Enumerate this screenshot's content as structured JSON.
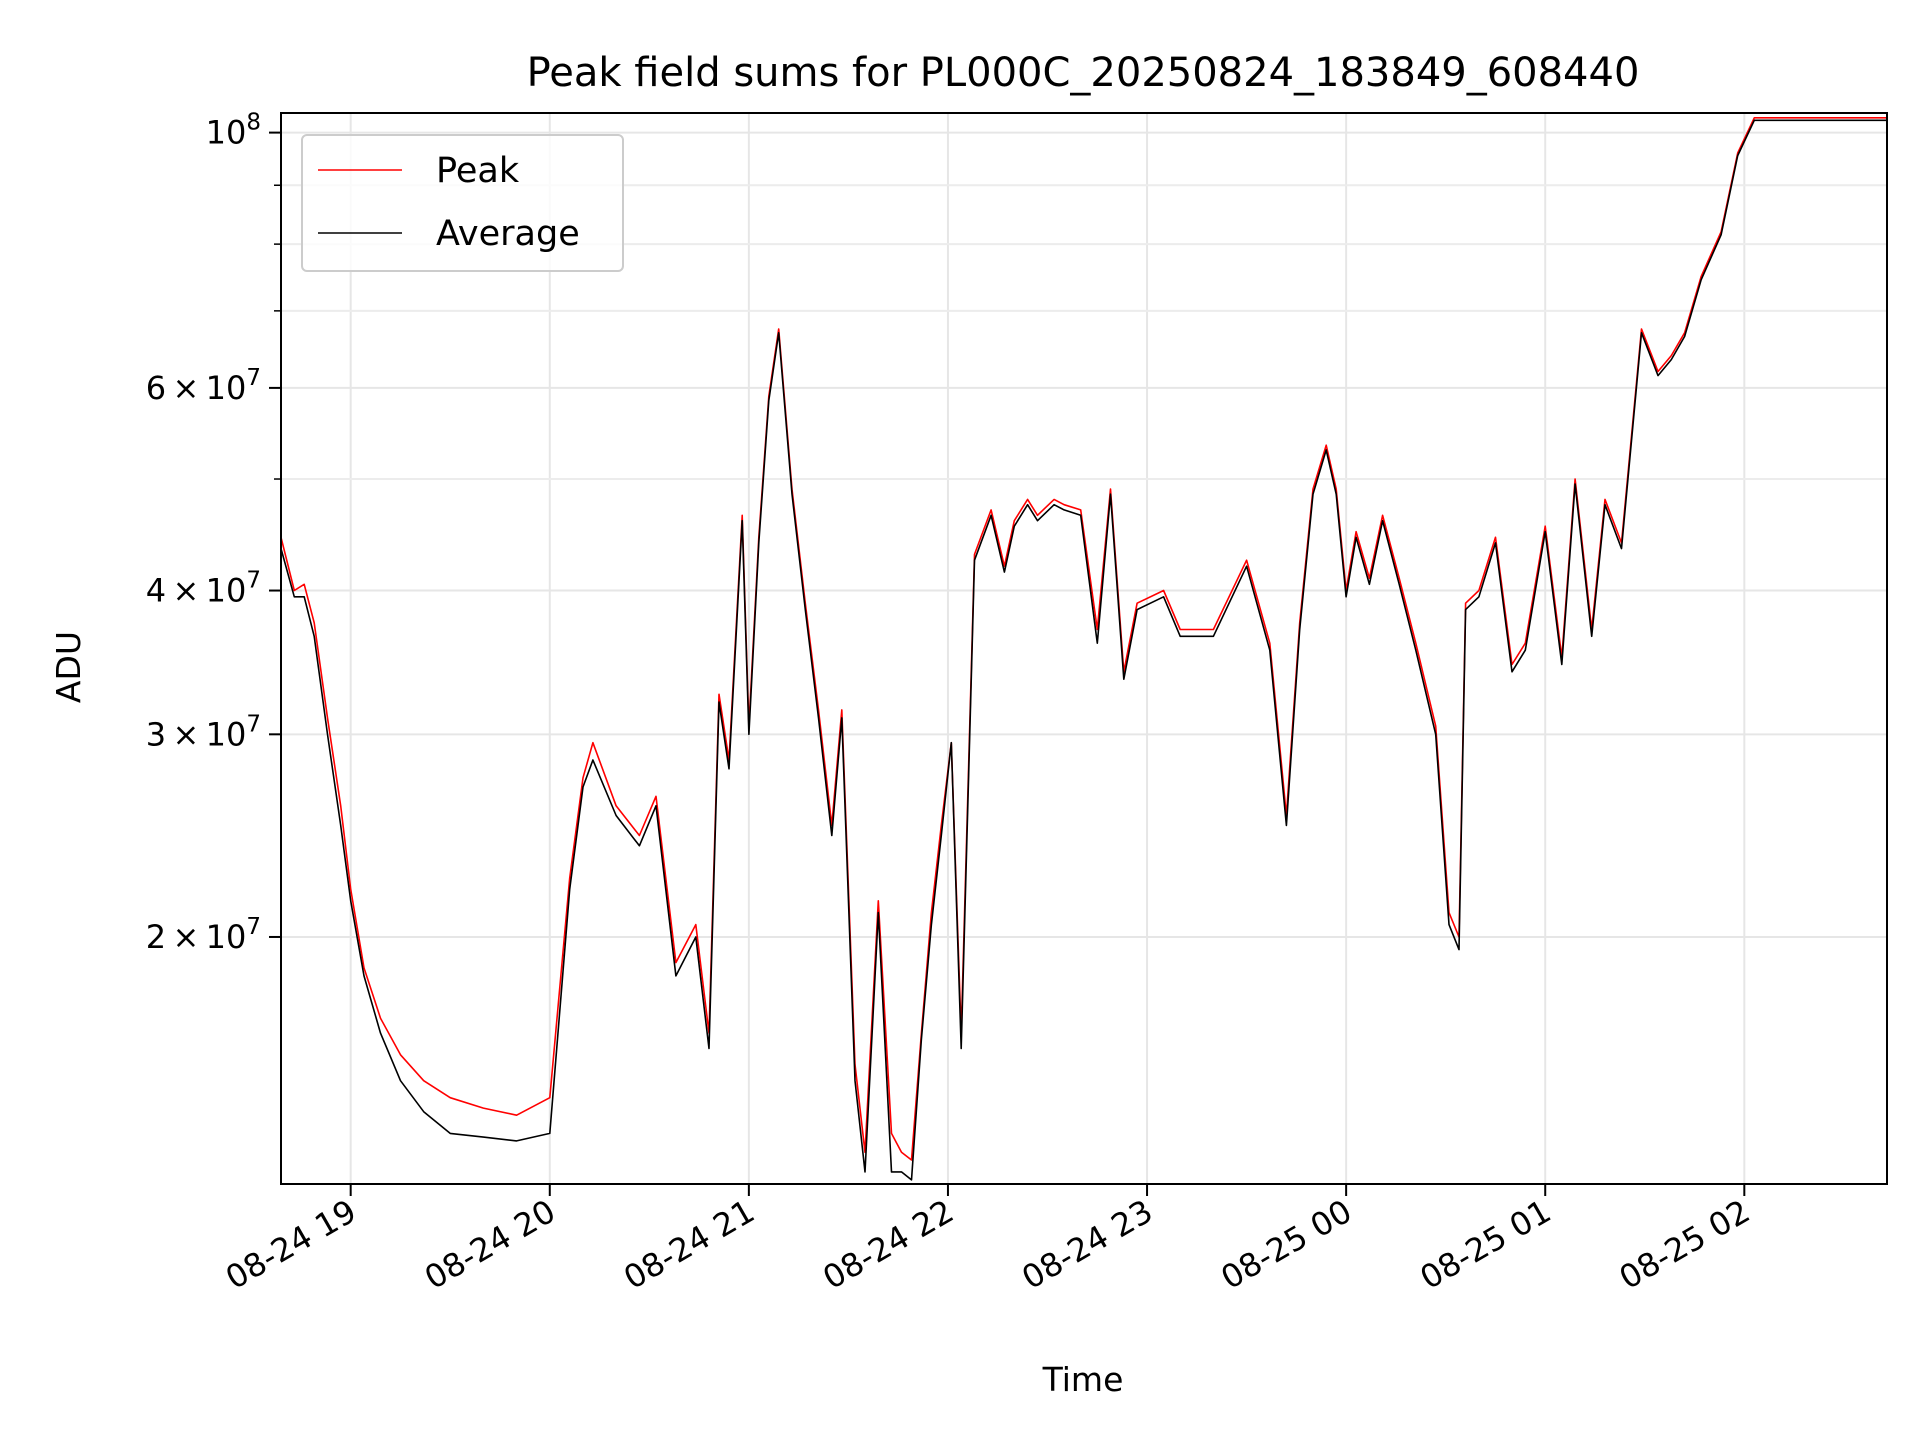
{
  "chart_data": {
    "type": "line",
    "title": "Peak field sums for PL000C_20250824_183849_608440",
    "xlabel": "Time",
    "ylabel": "ADU",
    "x_scale": "time",
    "y_scale": "log",
    "xlim": [
      "2025-08-24T18:39",
      "2025-08-25T02:43"
    ],
    "ylim": [
      12200000,
      104000000
    ],
    "x_ticks": [
      {
        "t": "2025-08-24T19:00",
        "label": "08-24 19"
      },
      {
        "t": "2025-08-24T20:00",
        "label": "08-24 20"
      },
      {
        "t": "2025-08-24T21:00",
        "label": "08-24 21"
      },
      {
        "t": "2025-08-24T22:00",
        "label": "08-24 22"
      },
      {
        "t": "2025-08-24T23:00",
        "label": "08-24 23"
      },
      {
        "t": "2025-08-25T00:00",
        "label": "08-25 00"
      },
      {
        "t": "2025-08-25T01:00",
        "label": "08-25 01"
      },
      {
        "t": "2025-08-25T02:00",
        "label": "08-25 02"
      }
    ],
    "y_major_ticks": [
      {
        "value": 20000000,
        "mant": "2",
        "exp": "7"
      },
      {
        "value": 30000000,
        "mant": "3",
        "exp": "7"
      },
      {
        "value": 40000000,
        "mant": "4",
        "exp": "7"
      },
      {
        "value": 60000000,
        "mant": "6",
        "exp": "7"
      },
      {
        "value": 100000000,
        "mant": "",
        "exp": "8"
      }
    ],
    "y_minor_ticks": [
      50000000,
      70000000,
      80000000,
      90000000
    ],
    "grid": true,
    "legend_position": "upper-left",
    "series": [
      {
        "name": "Peak",
        "color": "#ff0000",
        "x": [
          "2025-08-24T18:39",
          "2025-08-24T18:43",
          "2025-08-24T18:46",
          "2025-08-24T18:49",
          "2025-08-24T18:53",
          "2025-08-24T18:57",
          "2025-08-24T19:00",
          "2025-08-24T19:04",
          "2025-08-24T19:09",
          "2025-08-24T19:15",
          "2025-08-24T19:22",
          "2025-08-24T19:30",
          "2025-08-24T19:40",
          "2025-08-24T19:50",
          "2025-08-24T20:00",
          "2025-08-24T20:06",
          "2025-08-24T20:10",
          "2025-08-24T20:13",
          "2025-08-24T20:20",
          "2025-08-24T20:27",
          "2025-08-24T20:32",
          "2025-08-24T20:38",
          "2025-08-24T20:44",
          "2025-08-24T20:48",
          "2025-08-24T20:51",
          "2025-08-24T20:54",
          "2025-08-24T20:58",
          "2025-08-24T21:00",
          "2025-08-24T21:03",
          "2025-08-24T21:06",
          "2025-08-24T21:09",
          "2025-08-24T21:13",
          "2025-08-24T21:17",
          "2025-08-24T21:21",
          "2025-08-24T21:25",
          "2025-08-24T21:28",
          "2025-08-24T21:32",
          "2025-08-24T21:35",
          "2025-08-24T21:39",
          "2025-08-24T21:43",
          "2025-08-24T21:46",
          "2025-08-24T21:49",
          "2025-08-24T21:52",
          "2025-08-24T21:55",
          "2025-08-24T21:58",
          "2025-08-24T22:01",
          "2025-08-24T22:04",
          "2025-08-24T22:08",
          "2025-08-24T22:13",
          "2025-08-24T22:17",
          "2025-08-24T22:20",
          "2025-08-24T22:24",
          "2025-08-24T22:27",
          "2025-08-24T22:32",
          "2025-08-24T22:35",
          "2025-08-24T22:40",
          "2025-08-24T22:45",
          "2025-08-24T22:49",
          "2025-08-24T22:53",
          "2025-08-24T22:57",
          "2025-08-24T23:05",
          "2025-08-24T23:10",
          "2025-08-24T23:20",
          "2025-08-24T23:30",
          "2025-08-24T23:37",
          "2025-08-24T23:42",
          "2025-08-24T23:46",
          "2025-08-24T23:50",
          "2025-08-24T23:54",
          "2025-08-24T23:57",
          "2025-08-25T00:00",
          "2025-08-25T00:03",
          "2025-08-25T00:07",
          "2025-08-25T00:11",
          "2025-08-25T00:16",
          "2025-08-25T00:21",
          "2025-08-25T00:27",
          "2025-08-25T00:31",
          "2025-08-25T00:34",
          "2025-08-25T00:36",
          "2025-08-25T00:40",
          "2025-08-25T00:45",
          "2025-08-25T00:50",
          "2025-08-25T00:54",
          "2025-08-25T01:00",
          "2025-08-25T01:05",
          "2025-08-25T01:09",
          "2025-08-25T01:14",
          "2025-08-25T01:18",
          "2025-08-25T01:23",
          "2025-08-25T01:29",
          "2025-08-25T01:34",
          "2025-08-25T01:38",
          "2025-08-25T01:42",
          "2025-08-25T01:47",
          "2025-08-25T01:53",
          "2025-08-25T01:58",
          "2025-08-25T02:03",
          "2025-08-25T02:06",
          "2025-08-25T02:11",
          "2025-08-25T02:15",
          "2025-08-25T02:19",
          "2025-08-25T02:23",
          "2025-08-25T02:27",
          "2025-08-25T02:31",
          "2025-08-25T02:34",
          "2025-08-25T02:38",
          "2025-08-25T02:43"
        ],
        "values": [
          44500000,
          40000000,
          40500000,
          37500000,
          31000000,
          26000000,
          22000000,
          18800000,
          17000000,
          15800000,
          15000000,
          14500000,
          14200000,
          14000000,
          14500000,
          22500000,
          27500000,
          29500000,
          26000000,
          24500000,
          26500000,
          19000000,
          20500000,
          16500000,
          32500000,
          28500000,
          46500000,
          30500000,
          44500000,
          59000000,
          67500000,
          49000000,
          39000000,
          31500000,
          25000000,
          31500000,
          15500000,
          13000000,
          21500000,
          13500000,
          13000000,
          12800000,
          16500000,
          21000000,
          25000000,
          29500000,
          16500000,
          43000000,
          47000000,
          42000000,
          46000000,
          48000000,
          46500000,
          48000000,
          47500000,
          47000000,
          37000000,
          49000000,
          34000000,
          39000000,
          40000000,
          37000000,
          37000000,
          42500000,
          36000000,
          25500000,
          37500000,
          49000000,
          53500000,
          49000000,
          40000000,
          45000000,
          41000000,
          46500000,
          41000000,
          36000000,
          30500000,
          21000000,
          20000000,
          39000000,
          40000000,
          44500000,
          34500000,
          36000000,
          45500000,
          35000000,
          50000000,
          37000000,
          48000000,
          44000000,
          67500000,
          62000000,
          64000000,
          67000000,
          75000000,
          82000000,
          96000000,
          103000000,
          103000000,
          103000000,
          103000000,
          103000000,
          103000000,
          103000000,
          103000000,
          103000000,
          103000000,
          103000000
        ]
      },
      {
        "name": "Average",
        "color": "#000000",
        "x": [
          "2025-08-24T18:39",
          "2025-08-24T18:43",
          "2025-08-24T18:46",
          "2025-08-24T18:49",
          "2025-08-24T18:53",
          "2025-08-24T18:57",
          "2025-08-24T19:00",
          "2025-08-24T19:04",
          "2025-08-24T19:09",
          "2025-08-24T19:15",
          "2025-08-24T19:22",
          "2025-08-24T19:30",
          "2025-08-24T19:40",
          "2025-08-24T19:50",
          "2025-08-24T20:00",
          "2025-08-24T20:06",
          "2025-08-24T20:10",
          "2025-08-24T20:13",
          "2025-08-24T20:20",
          "2025-08-24T20:27",
          "2025-08-24T20:32",
          "2025-08-24T20:38",
          "2025-08-24T20:44",
          "2025-08-24T20:48",
          "2025-08-24T20:51",
          "2025-08-24T20:54",
          "2025-08-24T20:58",
          "2025-08-24T21:00",
          "2025-08-24T21:03",
          "2025-08-24T21:06",
          "2025-08-24T21:09",
          "2025-08-24T21:13",
          "2025-08-24T21:17",
          "2025-08-24T21:21",
          "2025-08-24T21:25",
          "2025-08-24T21:28",
          "2025-08-24T21:32",
          "2025-08-24T21:35",
          "2025-08-24T21:39",
          "2025-08-24T21:43",
          "2025-08-24T21:46",
          "2025-08-24T21:49",
          "2025-08-24T21:52",
          "2025-08-24T21:55",
          "2025-08-24T21:58",
          "2025-08-24T22:01",
          "2025-08-24T22:04",
          "2025-08-24T22:08",
          "2025-08-24T22:13",
          "2025-08-24T22:17",
          "2025-08-24T22:20",
          "2025-08-24T22:24",
          "2025-08-24T22:27",
          "2025-08-24T22:32",
          "2025-08-24T22:35",
          "2025-08-24T22:40",
          "2025-08-24T22:45",
          "2025-08-24T22:49",
          "2025-08-24T22:53",
          "2025-08-24T22:57",
          "2025-08-24T23:05",
          "2025-08-24T23:10",
          "2025-08-24T23:20",
          "2025-08-24T23:30",
          "2025-08-24T23:37",
          "2025-08-24T23:42",
          "2025-08-24T23:46",
          "2025-08-24T23:50",
          "2025-08-24T23:54",
          "2025-08-24T23:57",
          "2025-08-25T00:00",
          "2025-08-25T00:03",
          "2025-08-25T00:07",
          "2025-08-25T00:11",
          "2025-08-25T00:16",
          "2025-08-25T00:21",
          "2025-08-25T00:27",
          "2025-08-25T00:31",
          "2025-08-25T00:34",
          "2025-08-25T00:36",
          "2025-08-25T00:40",
          "2025-08-25T00:45",
          "2025-08-25T00:50",
          "2025-08-25T00:54",
          "2025-08-25T01:00",
          "2025-08-25T01:05",
          "2025-08-25T01:09",
          "2025-08-25T01:14",
          "2025-08-25T01:18",
          "2025-08-25T01:23",
          "2025-08-25T01:29",
          "2025-08-25T01:34",
          "2025-08-25T01:38",
          "2025-08-25T01:42",
          "2025-08-25T01:47",
          "2025-08-25T01:53",
          "2025-08-25T01:58",
          "2025-08-25T02:03",
          "2025-08-25T02:06",
          "2025-08-25T02:11",
          "2025-08-25T02:15",
          "2025-08-25T02:19",
          "2025-08-25T02:23",
          "2025-08-25T02:27",
          "2025-08-25T02:31",
          "2025-08-25T02:34",
          "2025-08-25T02:38",
          "2025-08-25T02:43"
        ],
        "values": [
          43500000,
          39500000,
          39500000,
          36500000,
          30000000,
          25000000,
          21500000,
          18500000,
          16500000,
          15000000,
          14100000,
          13500000,
          13400000,
          13300000,
          13500000,
          22000000,
          27000000,
          28500000,
          25500000,
          24000000,
          26000000,
          18500000,
          20000000,
          16000000,
          32000000,
          28000000,
          46000000,
          30000000,
          44000000,
          58500000,
          67000000,
          48500000,
          38500000,
          31000000,
          24500000,
          31000000,
          15000000,
          12500000,
          21000000,
          12500000,
          12500000,
          12300000,
          16300000,
          20500000,
          24500000,
          29500000,
          16000000,
          42500000,
          46500000,
          41500000,
          45500000,
          47500000,
          46000000,
          47500000,
          47000000,
          46500000,
          36000000,
          48500000,
          33500000,
          38500000,
          39500000,
          36500000,
          36500000,
          42000000,
          35500000,
          25000000,
          37000000,
          48500000,
          53000000,
          48500000,
          39500000,
          44500000,
          40500000,
          46000000,
          40500000,
          35500000,
          30000000,
          20500000,
          19500000,
          38500000,
          39500000,
          44000000,
          34000000,
          35500000,
          45000000,
          34500000,
          49500000,
          36500000,
          47500000,
          43500000,
          67000000,
          61500000,
          63500000,
          66500000,
          74500000,
          81500000,
          95500000,
          102500000,
          102500000,
          102500000,
          102500000,
          102500000,
          102500000,
          102500000,
          102500000,
          102500000,
          102500000,
          102500000
        ]
      }
    ]
  }
}
